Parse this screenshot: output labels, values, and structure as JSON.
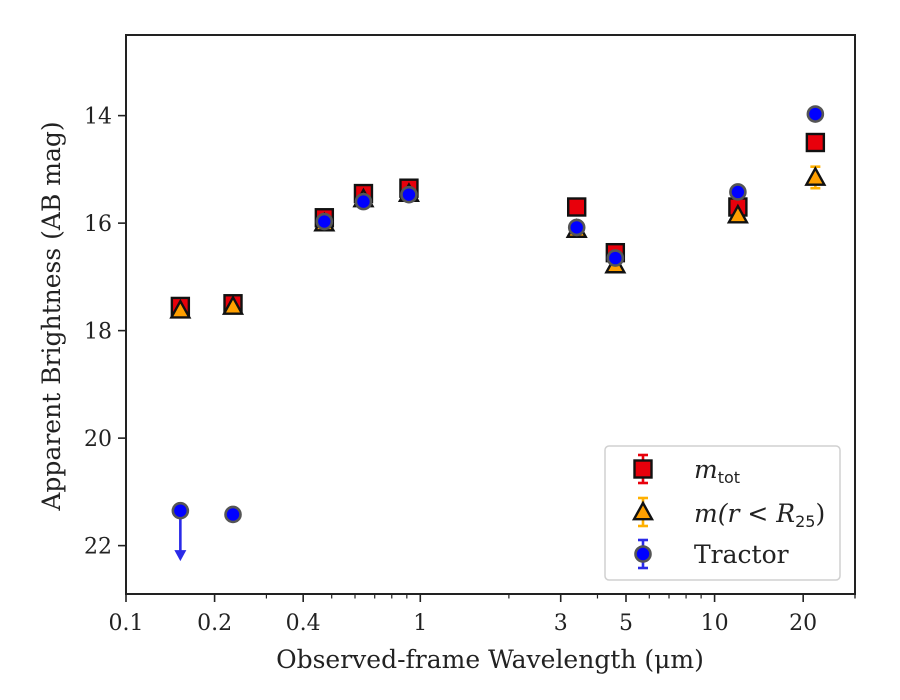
{
  "chart_data": {
    "type": "scatter",
    "xlabel": "Observed-frame Wavelength (μm)",
    "ylabel": "Apparent Brightness (AB mag)",
    "xscale": "log",
    "xlim": [
      0.1,
      30
    ],
    "ylim": [
      22.9,
      12.5
    ],
    "y_inverted": true,
    "x_ticks": [
      0.1,
      0.2,
      0.4,
      1,
      3,
      5,
      10,
      20
    ],
    "x_tick_labels": [
      "0.1",
      "0.2",
      "0.4",
      "1",
      "3",
      "5",
      "10",
      "20"
    ],
    "y_ticks": [
      14,
      16,
      18,
      20,
      22
    ],
    "y_tick_labels": [
      "14",
      "16",
      "18",
      "20",
      "22"
    ],
    "grid": false,
    "legend": {
      "position": "lower-right",
      "entries": [
        {
          "key": "mtot",
          "label_base": "m",
          "label_sub": "tot"
        },
        {
          "key": "mr25",
          "label_base": "m(r < R",
          "label_sub": "25",
          "label_end": ")"
        },
        {
          "key": "tractor",
          "label": "Tractor"
        }
      ]
    },
    "series": [
      {
        "key": "mtot",
        "marker": "square",
        "color": "#e8000b",
        "errcolor": "#e8000b",
        "points": [
          {
            "x": 0.153,
            "y": 17.55
          },
          {
            "x": 0.231,
            "y": 17.5
          },
          {
            "x": 0.472,
            "y": 15.9
          },
          {
            "x": 0.641,
            "y": 15.45
          },
          {
            "x": 0.915,
            "y": 15.35
          },
          {
            "x": 3.4,
            "y": 15.7
          },
          {
            "x": 4.6,
            "y": 16.55
          },
          {
            "x": 12.0,
            "y": 15.7
          },
          {
            "x": 22.0,
            "y": 14.5
          }
        ]
      },
      {
        "key": "mr25",
        "marker": "triangle",
        "color": "#ff9f00",
        "errcolor": "#ffb000",
        "points": [
          {
            "x": 0.153,
            "y": 17.62
          },
          {
            "x": 0.231,
            "y": 17.55
          },
          {
            "x": 0.472,
            "y": 16.0
          },
          {
            "x": 0.641,
            "y": 15.55
          },
          {
            "x": 0.915,
            "y": 15.45
          },
          {
            "x": 3.4,
            "y": 16.12
          },
          {
            "x": 4.6,
            "y": 16.78
          },
          {
            "x": 12.0,
            "y": 15.85
          },
          {
            "x": 22.0,
            "y": 15.15,
            "err": 0.2
          }
        ]
      },
      {
        "key": "tractor",
        "marker": "circle",
        "color": "#0000ff",
        "errcolor": "#2a2ae8",
        "points": [
          {
            "x": 0.153,
            "y": 21.35,
            "upper_limit": true
          },
          {
            "x": 0.231,
            "y": 21.42
          },
          {
            "x": 0.472,
            "y": 15.97
          },
          {
            "x": 0.641,
            "y": 15.6
          },
          {
            "x": 0.915,
            "y": 15.47
          },
          {
            "x": 3.4,
            "y": 16.08
          },
          {
            "x": 4.6,
            "y": 16.65
          },
          {
            "x": 12.0,
            "y": 15.42
          },
          {
            "x": 22.0,
            "y": 13.97
          }
        ]
      }
    ]
  }
}
